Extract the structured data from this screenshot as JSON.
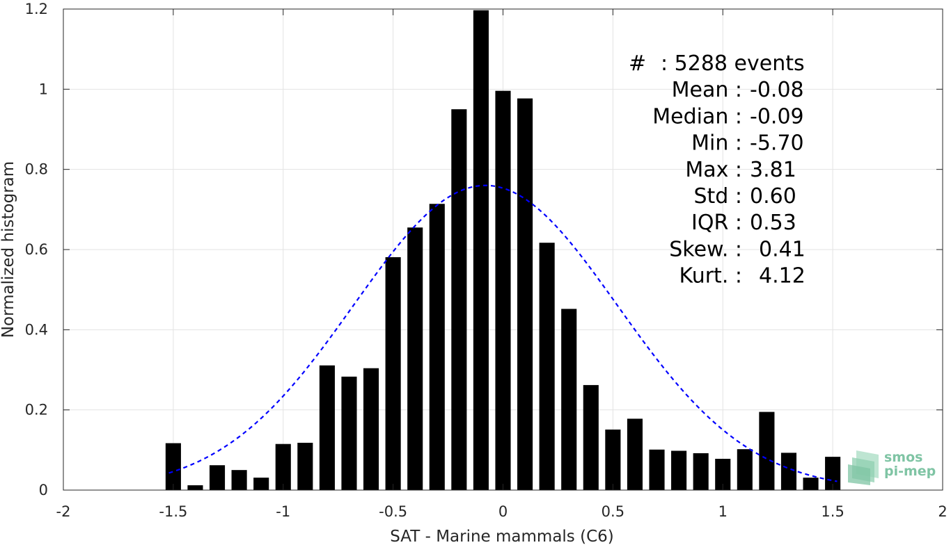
{
  "chart_data": {
    "type": "bar",
    "xlabel": "SAT - Marine mammals (C6)",
    "ylabel": "Normalized histogram",
    "xlim": [
      -2,
      2
    ],
    "ylim": [
      0,
      1.2
    ],
    "xticks": [
      -2,
      -1.5,
      -1,
      -0.5,
      0,
      0.5,
      1,
      1.5,
      2
    ],
    "xtick_labels": [
      "-2",
      "-1.5",
      "-1",
      "-0.5",
      "0",
      "0.5",
      "1",
      "1.5",
      "2"
    ],
    "yticks": [
      0,
      0.2,
      0.4,
      0.6,
      0.8,
      1,
      1.2
    ],
    "ytick_labels": [
      "0",
      "0.2",
      "0.4",
      "0.6",
      "0.8",
      "1",
      "1.2"
    ],
    "grid": true,
    "bar_width": 0.07,
    "bar_color": "#000000",
    "x": [
      -1.5,
      -1.4,
      -1.3,
      -1.2,
      -1.1,
      -1.0,
      -0.9,
      -0.8,
      -0.7,
      -0.6,
      -0.5,
      -0.4,
      -0.3,
      -0.2,
      -0.1,
      0.0,
      0.1,
      0.2,
      0.3,
      0.4,
      0.5,
      0.6,
      0.7,
      0.8,
      0.9,
      1.0,
      1.1,
      1.2,
      1.3,
      1.4,
      1.5
    ],
    "values": [
      0.117,
      0.012,
      0.062,
      0.05,
      0.031,
      0.115,
      0.118,
      0.311,
      0.283,
      0.304,
      0.581,
      0.655,
      0.714,
      0.95,
      1.197,
      0.996,
      0.977,
      0.617,
      0.452,
      0.262,
      0.151,
      0.178,
      0.101,
      0.098,
      0.092,
      0.078,
      0.102,
      0.195,
      0.093,
      0.031,
      0.083
    ],
    "fit_curve": {
      "type": "gaussian",
      "mean": -0.08,
      "std": 0.6,
      "peak": 0.76,
      "x_range": [
        -1.52,
        1.52
      ],
      "color": "#0000ff",
      "style": "dashed"
    },
    "annotations": [
      {
        "label": "#",
        "value": ": 5288 events"
      },
      {
        "label": "Mean :",
        "value": "-0.08"
      },
      {
        "label": "Median :",
        "value": "-0.09"
      },
      {
        "label": "Min :",
        "value": "-5.70"
      },
      {
        "label": "Max :",
        "value": "3.81"
      },
      {
        "label": "Std :",
        "value": "0.60"
      },
      {
        "label": "IQR :",
        "value": "0.53"
      },
      {
        "label": "Skew. :",
        "value": "0.41"
      },
      {
        "label": "Kurt. :",
        "value": "4.12"
      }
    ]
  },
  "logo": {
    "line1": "smos",
    "line2": "pi-mep",
    "color": "#7fc4a4"
  }
}
